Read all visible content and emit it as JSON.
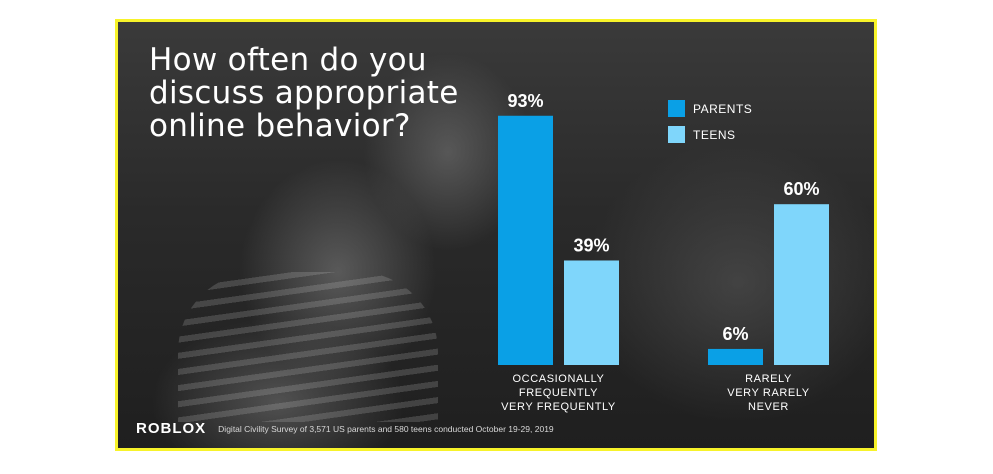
{
  "title": "How often do you discuss appropriate online behavior?",
  "brand": "ROBLOX",
  "source": "Digital Civility Survey of 3,571 US parents and 580 teens conducted October 19-29, 2019",
  "colors": {
    "parents": "#0aa0e6",
    "teens": "#7fd6fb",
    "frame": "#f7f32a"
  },
  "legend": {
    "parents": "PARENTS",
    "teens": "TEENS"
  },
  "chart_data": {
    "type": "bar",
    "categories": [
      [
        "OCCASIONALLY",
        "FREQUENTLY",
        "VERY FREQUENTLY"
      ],
      [
        "RARELY",
        "VERY RARELY",
        "NEVER"
      ]
    ],
    "series": [
      {
        "name": "PARENTS",
        "values": [
          93,
          6
        ]
      },
      {
        "name": "TEENS",
        "values": [
          39,
          60
        ]
      }
    ],
    "value_labels": [
      [
        "93%",
        "6%"
      ],
      [
        "39%",
        "60%"
      ]
    ],
    "ylim": [
      0,
      100
    ],
    "legend_position": "top-right"
  }
}
